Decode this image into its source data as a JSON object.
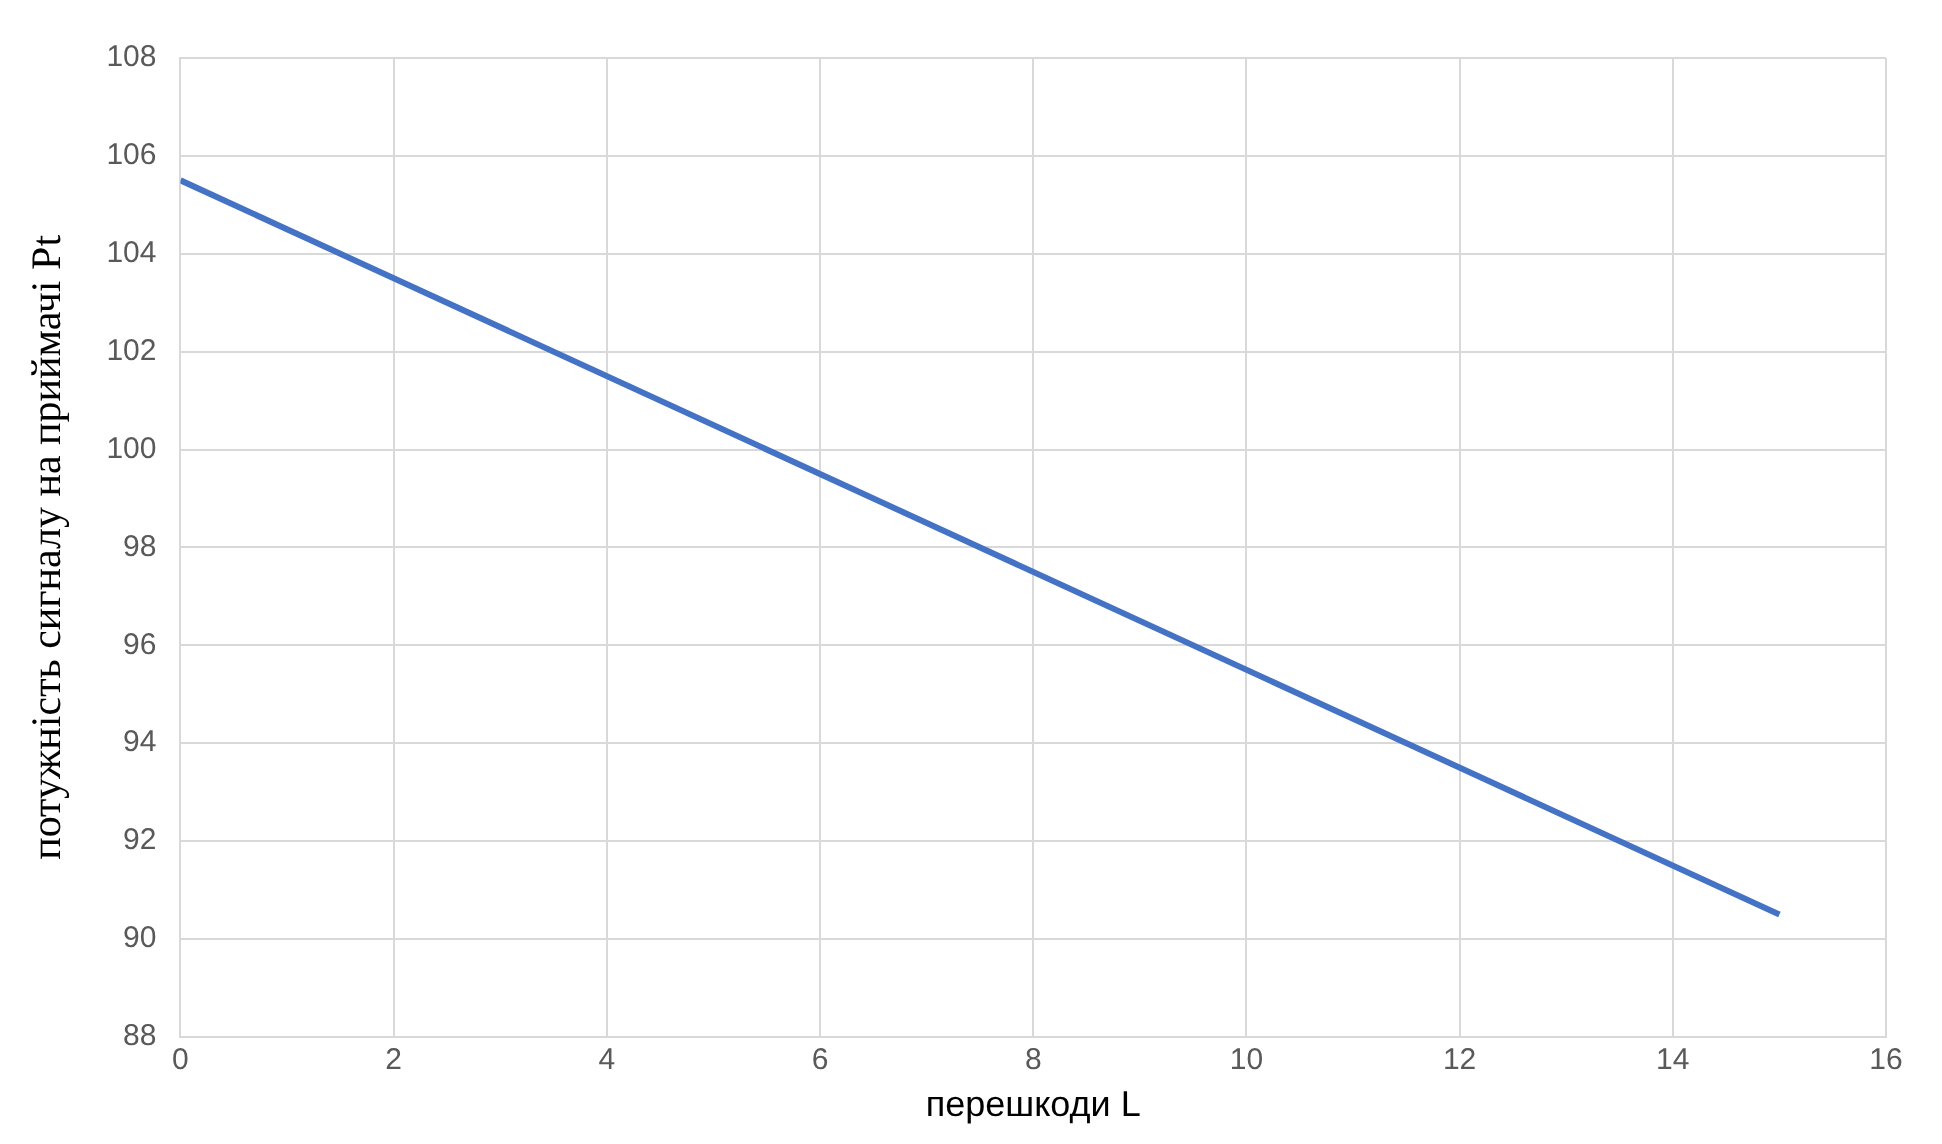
{
  "chart_data": {
    "type": "line",
    "xlabel": "перешкоди L",
    "ylabel": "потужність сигналу на приймачі Pt",
    "x": [
      0,
      15
    ],
    "series": [
      {
        "color": "#4472c4",
        "values": [
          105.5,
          90.5
        ]
      }
    ],
    "xlim": [
      0,
      16
    ],
    "xticks": [
      0,
      2,
      4,
      6,
      8,
      10,
      12,
      14,
      16
    ],
    "ylim": [
      88,
      108
    ],
    "yticks": [
      88,
      90,
      92,
      94,
      96,
      98,
      100,
      102,
      104,
      106,
      108
    ],
    "grid": true,
    "legend": false,
    "marker": "none",
    "line_style": "solid"
  }
}
